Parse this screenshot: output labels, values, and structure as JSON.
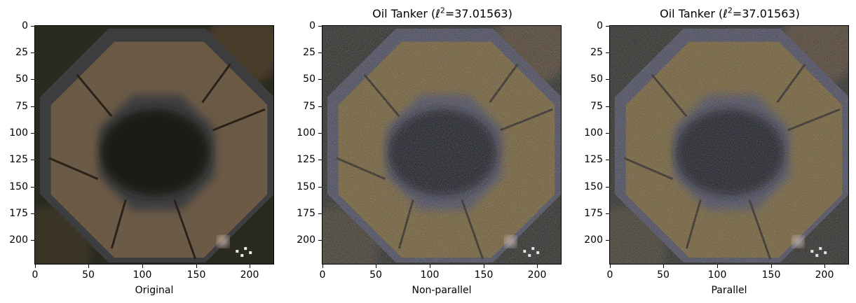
{
  "panels": [
    {
      "id": "original",
      "title": null,
      "xlabel": "Original",
      "noise": false,
      "colors": {
        "ring": "#6b5a46",
        "roof_dark": "#3c3d3f",
        "courtyard": "#1c1a14",
        "background": "#2a2a20"
      }
    },
    {
      "id": "non-parallel",
      "title": {
        "prefix": "Oil Tanker (",
        "symbol": "ℓ",
        "sup": "2",
        "suffix": "=37.01563)"
      },
      "xlabel": "Non-parallel",
      "noise": true,
      "colors": {
        "ring": "#6d5a30",
        "roof_dark": "#444455",
        "courtyard": "#16151c",
        "background": "#262620"
      }
    },
    {
      "id": "parallel",
      "title": {
        "prefix": "Oil Tanker (",
        "symbol": "ℓ",
        "sup": "2",
        "suffix": "=37.01563)"
      },
      "xlabel": "Parallel",
      "noise": true,
      "colors": {
        "ring": "#6d5a30",
        "roof_dark": "#444455",
        "courtyard": "#16151c",
        "background": "#262620"
      }
    }
  ],
  "axes": {
    "xlim": [
      0,
      223
    ],
    "ylim": [
      223,
      0
    ],
    "xticks": [
      0,
      50,
      100,
      150,
      200
    ],
    "yticks": [
      0,
      25,
      50,
      75,
      100,
      125,
      150,
      175,
      200
    ]
  }
}
